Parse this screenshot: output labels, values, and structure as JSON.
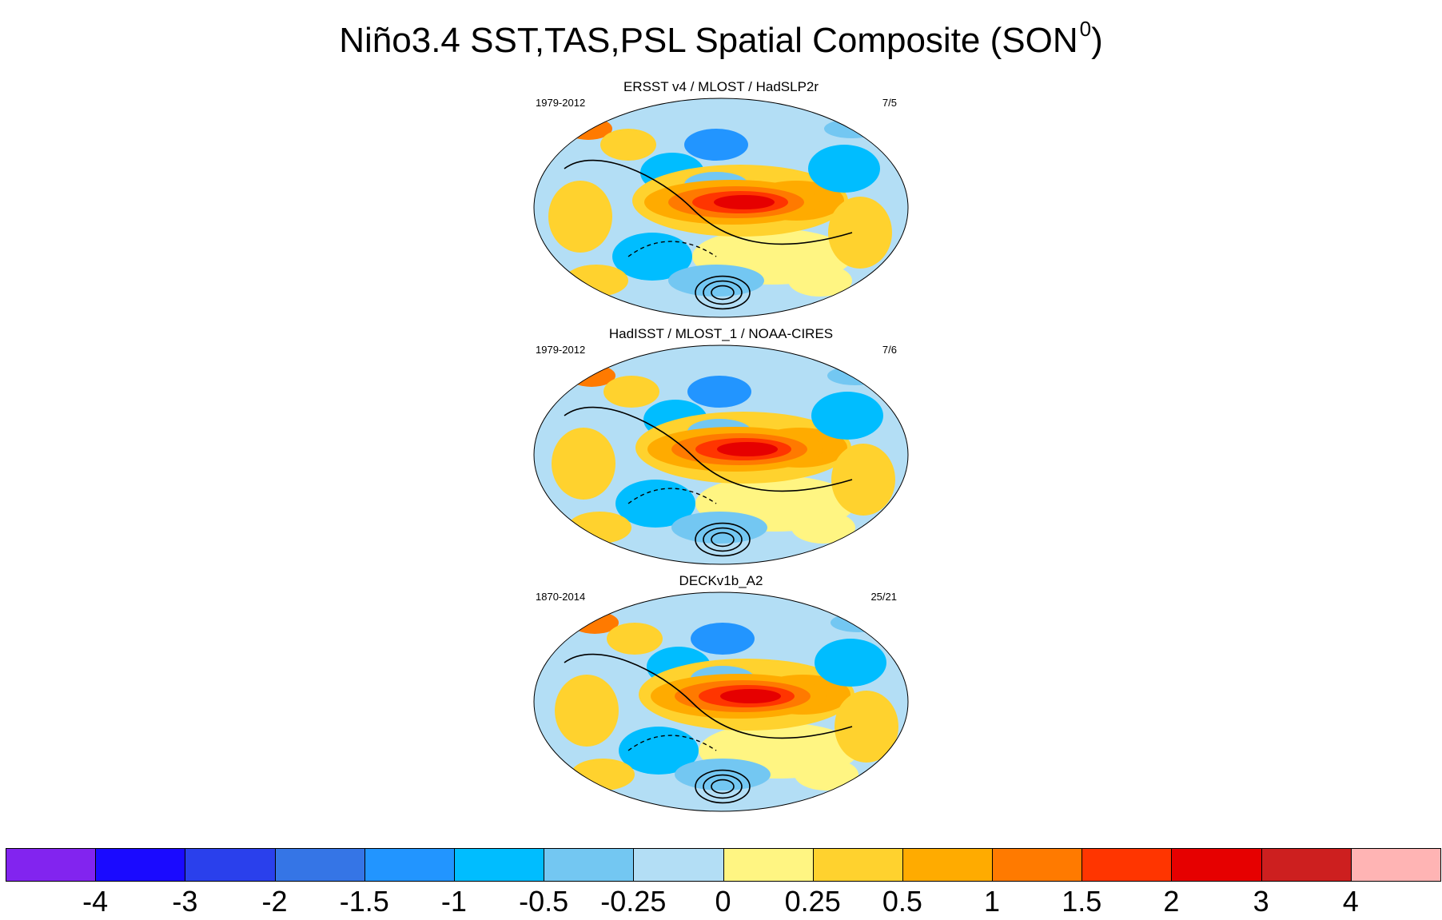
{
  "title": "Niño3.4 SST,TAS,PSL Spatial Composite (SON",
  "title_superscript": "0",
  "title_close": ")",
  "panels": [
    {
      "title": "ERSST v4 / MLOST / HadSLP2r",
      "period": "1979-2012",
      "count": "7/5"
    },
    {
      "title": "HadISST / MLOST_1 / NOAA-CIRES",
      "period": "1979-2012",
      "count": "7/6"
    },
    {
      "title": "DECKv1b_A2",
      "period": "1870-2014",
      "count": "25/21"
    }
  ],
  "colorbar": {
    "colors": [
      "#8224ef",
      "#1a0aff",
      "#2a40ec",
      "#3575e6",
      "#2295ff",
      "#00bdff",
      "#73c7f2",
      "#b3def5",
      "#fff582",
      "#ffd22e",
      "#ffab00",
      "#ff7a00",
      "#ff3500",
      "#e60000",
      "#cd1f1f",
      "#ffb4b4"
    ],
    "labels": [
      "-4",
      "-3",
      "-2",
      "-1.5",
      "-1",
      "-0.5",
      "-0.25",
      "0",
      "0.25",
      "0.5",
      "1",
      "1.5",
      "2",
      "3",
      "4"
    ]
  },
  "chart_data": [
    {
      "type": "heatmap",
      "title": "ERSST v4 / MLOST / HadSLP2r",
      "period": "1979-2012",
      "count": "7/5",
      "variables": [
        "SST",
        "TAS",
        "PSL"
      ],
      "season": "SON",
      "levels": [
        -4,
        -3,
        -2,
        -1.5,
        -1,
        -0.5,
        -0.25,
        0,
        0.25,
        0.5,
        1,
        1.5,
        2,
        3,
        4
      ]
    },
    {
      "type": "heatmap",
      "title": "HadISST / MLOST_1 / NOAA-CIRES",
      "period": "1979-2012",
      "count": "7/6",
      "variables": [
        "SST",
        "TAS",
        "PSL"
      ],
      "season": "SON",
      "levels": [
        -4,
        -3,
        -2,
        -1.5,
        -1,
        -0.5,
        -0.25,
        0,
        0.25,
        0.5,
        1,
        1.5,
        2,
        3,
        4
      ]
    },
    {
      "type": "heatmap",
      "title": "DECKv1b_A2",
      "period": "1870-2014",
      "count": "25/21",
      "variables": [
        "SST",
        "TAS",
        "PSL"
      ],
      "season": "SON",
      "levels": [
        -4,
        -3,
        -2,
        -1.5,
        -1,
        -0.5,
        -0.25,
        0,
        0.25,
        0.5,
        1,
        1.5,
        2,
        3,
        4
      ]
    }
  ]
}
